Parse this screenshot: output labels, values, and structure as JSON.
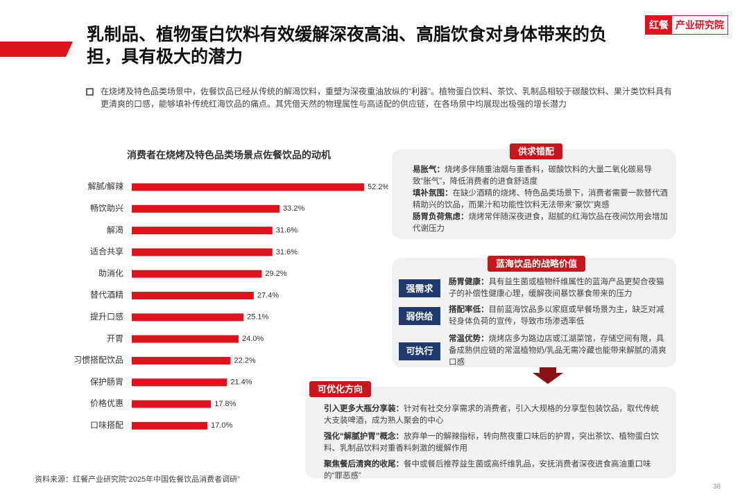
{
  "header": {
    "title": "乳制品、植物蛋白饮料有效缓解深夜高油、高脂饮食对身体带来的负担，具有极大的潜力",
    "logo_brand": "红餐",
    "logo_text": "产业研究院"
  },
  "intro": "在烧烤及特色品类场景中，佐餐饮品已经从传统的解渴饮料，重塑为深夜重油放纵的“利器”。植物蛋白饮料、茶饮、乳制品相较于碳酸饮料、果汁类饮料具有更清爽的口感，能够填补传统红海饮品的痛点。其凭借天然的物理属性与高适配的供应链，在各场景中均展现出极强的增长潜力",
  "chart_data": {
    "type": "bar",
    "orientation": "horizontal",
    "title": "消费者在烧烤及特色品类场景点佐餐饮品的动机",
    "color": "#e0121e",
    "categories": [
      "解腻/解辣",
      "畅饮助兴",
      "解渴",
      "适合共享",
      "助消化",
      "替代酒精",
      "提升口感",
      "开胃",
      "习惯搭配饮品",
      "保护肠胃",
      "价格优惠",
      "口味搭配"
    ],
    "values": [
      52.2,
      33.2,
      31.6,
      31.6,
      29.2,
      27.4,
      25.1,
      24.0,
      22.2,
      21.4,
      17.8,
      17.0
    ],
    "value_labels": [
      "52.2%",
      "33.2%",
      "31.6%",
      "31.6%",
      "29.2%",
      "27.4%",
      "25.1%",
      "24.0%",
      "22.2%",
      "21.4%",
      "17.8%",
      "17.0%"
    ]
  },
  "panels": {
    "supply": {
      "title": "供求错配",
      "items": [
        {
          "label": "易胀气：",
          "text": "烧烤多伴随重油烟与重香料，碳酸饮料的大量二氧化碳易导致“胀气”，降低消费者的进食舒适度"
        },
        {
          "label": "填补氛围：",
          "text": "在缺少酒精的烧烤、特色品类场景下，消费者需要一款替代酒精助兴的饮品，而果汁和功能性饮料无法带来“豪饮”爽感"
        },
        {
          "label": "肠胃负荷焦虑：",
          "text": "烧烤常伴随深夜进食，甜腻的红海饮品在夜间饮用会增加代谢压力"
        }
      ]
    },
    "value": {
      "title": "蓝海饮品的战略价值",
      "items": [
        {
          "tag": "强需求",
          "label": "肠胃健康：",
          "text": "具有益生菌或植物纤维属性的蓝海产品更契合夜猫子的补偿性健康心理，缓解夜间暴饮暴食带来的压力"
        },
        {
          "tag": "弱供给",
          "label": "搭配率低：",
          "text": "目前蓝海饮品多以家庭或早餐场景为主，缺乏对减轻身体负荷的宣传，导致市场渗透率低"
        },
        {
          "tag": "可执行",
          "label": "常温优势：",
          "text": "烧烤店多为路边店或江湖菜馆，存储空间有限，具备成熟供应链的常温植物奶/乳品无需冷藏也能带来解腻的清爽口感"
        }
      ]
    },
    "optimize": {
      "title": "可优化方向",
      "items": [
        {
          "label": "引入更多大瓶分享装：",
          "text": "针对有社交分享需求的消费者，引入大规格的分享型包装饮品，取代传统大支装啤酒，成为熟人聚会的中心"
        },
        {
          "label": "强化“解腻护胃”概念：",
          "text": "放弃单一的解辣指标，转向熬夜重口味后的护胃，突出茶饮、植物蛋白饮料、乳制品饮料对重香料刺激的缓解作用"
        },
        {
          "label": "聚焦餐后清爽的收尾：",
          "text": "餐中或餐后推荐益生菌或高纤维乳品，安抚消费者深夜进食高油重口味的“罪恶感”"
        }
      ]
    }
  },
  "source": "资料来源：红餐产业研究院“2025年中国佐餐饮品消费者调研”",
  "page_number": "38"
}
